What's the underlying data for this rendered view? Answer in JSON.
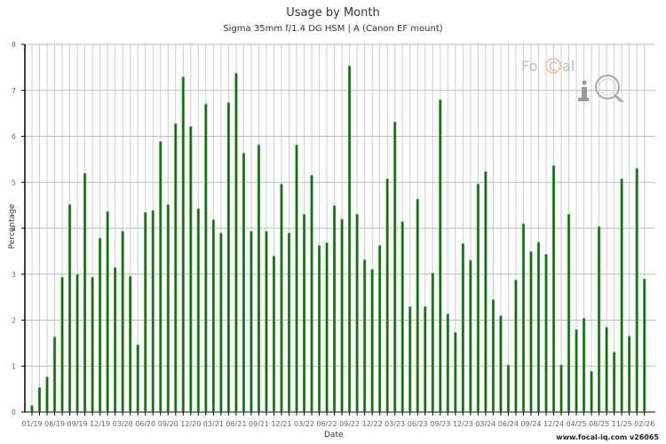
{
  "header": {
    "title": "Usage by Month",
    "subtitle": "Sigma 35mm f/1.4 DG HSM | A (Canon EF mount)"
  },
  "axes": {
    "xlabel": "Date",
    "ylabel": "Percentage"
  },
  "footer": {
    "text": "www.focal-iq.com  v26065"
  },
  "logo": {
    "text_focal": "FoCal",
    "text_iq": "iQ"
  },
  "colors": {
    "bar": "#0a6b0a",
    "bar_edge": "#5fa05f",
    "grid": "#cccccc",
    "axis": "#000000"
  },
  "chart_data": {
    "type": "bar",
    "title": "Usage by Month",
    "subtitle": "Sigma 35mm f/1.4 DG HSM | A (Canon EF mount)",
    "xlabel": "Date",
    "ylabel": "Percentage",
    "ylim": [
      0,
      8
    ],
    "yticks": [
      0,
      1,
      2,
      3,
      4,
      5,
      6,
      7,
      8
    ],
    "grid": true,
    "legend": "none",
    "tick_labels": [
      "01/19",
      "06/19",
      "09/19",
      "12/19",
      "03/20",
      "06/20",
      "09/20",
      "12/20",
      "03/21",
      "06/21",
      "09/21",
      "12/21",
      "03/22",
      "06/22",
      "09/22",
      "12/22",
      "03/23",
      "06/23",
      "09/23",
      "12/23",
      "03/24",
      "06/24",
      "09/24",
      "12/24",
      "04/25",
      "08/25",
      "11/25",
      "02/26"
    ],
    "tick_every_n_bars": 3,
    "values": [
      0.15,
      0.54,
      0.77,
      1.64,
      2.94,
      4.52,
      3.0,
      5.2,
      2.94,
      3.79,
      4.37,
      3.15,
      3.94,
      2.96,
      1.47,
      4.35,
      4.39,
      5.89,
      4.52,
      6.28,
      7.3,
      6.22,
      4.43,
      6.71,
      4.19,
      3.9,
      6.74,
      7.38,
      5.64,
      3.94,
      5.82,
      3.94,
      3.4,
      4.97,
      3.9,
      5.82,
      4.31,
      5.16,
      3.63,
      3.69,
      4.5,
      4.2,
      7.54,
      4.31,
      3.32,
      3.11,
      3.63,
      5.08,
      6.32,
      4.15,
      2.3,
      4.64,
      2.3,
      3.03,
      6.8,
      2.14,
      1.74,
      3.67,
      3.31,
      4.97,
      5.24,
      2.45,
      2.1,
      1.03,
      2.88,
      4.1,
      3.5,
      3.7,
      3.44,
      5.37,
      1.03,
      4.31,
      1.8,
      2.05,
      0.89,
      4.04,
      1.85,
      1.31,
      5.08,
      1.66,
      5.31,
      2.9
    ]
  }
}
